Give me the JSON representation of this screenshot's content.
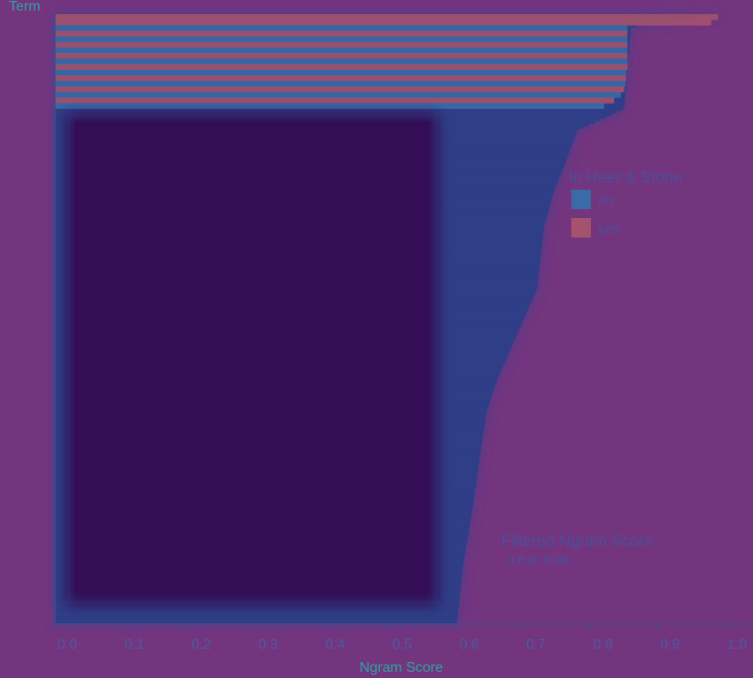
{
  "chart_data": {
    "type": "bar",
    "title": "",
    "ylabel": "Term",
    "xlabel": "Ngram Score",
    "xlim": [
      0,
      1.0
    ],
    "x_ticks": [
      "0.0",
      "0.1",
      "0.2",
      "0.3",
      "0.4",
      "0.5",
      "0.6",
      "0.7",
      "0.8",
      "0.9",
      "1.0"
    ],
    "orientation": "horizontal",
    "sorted": "descending",
    "legend": {
      "title": "In Heer & Stone",
      "placement": "top-right",
      "items": [
        {
          "label": "no",
          "color": "#3a6aa8"
        },
        {
          "label": "yes",
          "color": "#a5526d"
        }
      ]
    },
    "annotation": {
      "title": "Filtered Ngram Score",
      "range_text": "0.6 to 0.99",
      "range": [
        0.6,
        0.99
      ]
    },
    "highlighted_region": {
      "x_range": [
        0,
        0.6
      ],
      "color": "#330e57"
    },
    "top_bands": [
      {
        "in_heer_stone": "yes",
        "score": 0.99
      },
      {
        "in_heer_stone": "yes",
        "score": 0.98
      },
      {
        "in_heer_stone": "no",
        "score": 0.855
      },
      {
        "in_heer_stone": "yes",
        "score": 0.855
      },
      {
        "in_heer_stone": "no",
        "score": 0.855
      },
      {
        "in_heer_stone": "yes",
        "score": 0.855
      },
      {
        "in_heer_stone": "no",
        "score": 0.855
      },
      {
        "in_heer_stone": "yes",
        "score": 0.855
      },
      {
        "in_heer_stone": "no",
        "score": 0.855
      },
      {
        "in_heer_stone": "yes",
        "score": 0.855
      },
      {
        "in_heer_stone": "no",
        "score": 0.853
      },
      {
        "in_heer_stone": "yes",
        "score": 0.853
      },
      {
        "in_heer_stone": "no",
        "score": 0.852
      },
      {
        "in_heer_stone": "yes",
        "score": 0.85
      },
      {
        "in_heer_stone": "no",
        "score": 0.845
      },
      {
        "in_heer_stone": "yes",
        "score": 0.835
      },
      {
        "in_heer_stone": "no",
        "score": 0.82
      }
    ],
    "profile": {
      "description_values": "descending score across all terms (fraction of rank -> score)",
      "rank_fraction": [
        0.0,
        0.02,
        0.08,
        0.155,
        0.17,
        0.19,
        0.22,
        0.25,
        0.29,
        0.35,
        0.45,
        0.5,
        0.6,
        0.65,
        0.72,
        0.8,
        0.9,
        1.0
      ],
      "score": [
        1.0,
        0.86,
        0.855,
        0.85,
        0.82,
        0.78,
        0.77,
        0.76,
        0.745,
        0.73,
        0.72,
        0.7,
        0.66,
        0.645,
        0.635,
        0.625,
        0.61,
        0.6
      ]
    },
    "colors": {
      "background": "#74357f",
      "highlight": "#330e57",
      "axis": "#3d4d8c",
      "axis_label": "#2aa5a0",
      "tick_label": "#4a5aa0",
      "annotation": "#4a4f9a"
    }
  }
}
